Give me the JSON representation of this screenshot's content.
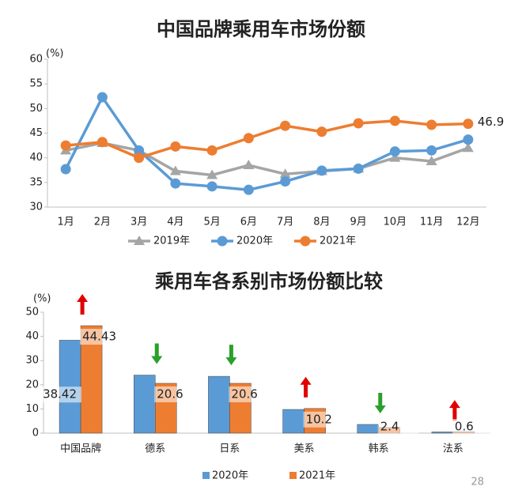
{
  "chart_data": [
    {
      "type": "line",
      "title": "中国品牌乘用车市场份额",
      "y_unit": "(%)",
      "categories": [
        "1月",
        "2月",
        "3月",
        "4月",
        "5月",
        "6月",
        "7月",
        "8月",
        "9月",
        "10月",
        "11月",
        "12月"
      ],
      "series": [
        {
          "name": "2019年",
          "color": "#a5a5a5",
          "marker": "triangle",
          "values": [
            41.5,
            43,
            41.5,
            37.3,
            36.5,
            38.5,
            36.7,
            37.3,
            37.8,
            40,
            39.3,
            42
          ]
        },
        {
          "name": "2020年",
          "color": "#5b9bd5",
          "marker": "circle",
          "values": [
            37.7,
            52.3,
            41.5,
            34.8,
            34.2,
            33.5,
            35.2,
            37.4,
            37.8,
            41.3,
            41.5,
            43.7
          ]
        },
        {
          "name": "2021年",
          "color": "#ed7d31",
          "marker": "circle",
          "values": [
            42.5,
            43.2,
            40,
            42.3,
            41.5,
            44,
            46.5,
            45.3,
            47,
            47.5,
            46.7,
            46.9
          ]
        }
      ],
      "ylim": [
        30,
        60
      ],
      "yticks": [
        30,
        35,
        40,
        45,
        50,
        55,
        60
      ],
      "legend": "bottom"
    },
    {
      "type": "bar",
      "title": "乘用车各系别市场份额比较",
      "y_unit": "(%)",
      "categories": [
        "中国品牌",
        "德系",
        "日系",
        "美系",
        "韩系",
        "法系"
      ],
      "series": [
        {
          "name": "2020年",
          "color": "#5b9bd5",
          "values": [
            38.42,
            24,
            23.5,
            9.8,
            3.6,
            0.5
          ]
        },
        {
          "name": "2021年",
          "color": "#ed7d31",
          "values": [
            44.43,
            20.6,
            20.6,
            10.2,
            2.4,
            0.6
          ]
        }
      ],
      "ylim": [
        0,
        50
      ],
      "yticks": [
        0,
        10,
        20,
        30,
        40,
        50
      ],
      "legend": "bottom"
    }
  ],
  "page_number": 28
}
